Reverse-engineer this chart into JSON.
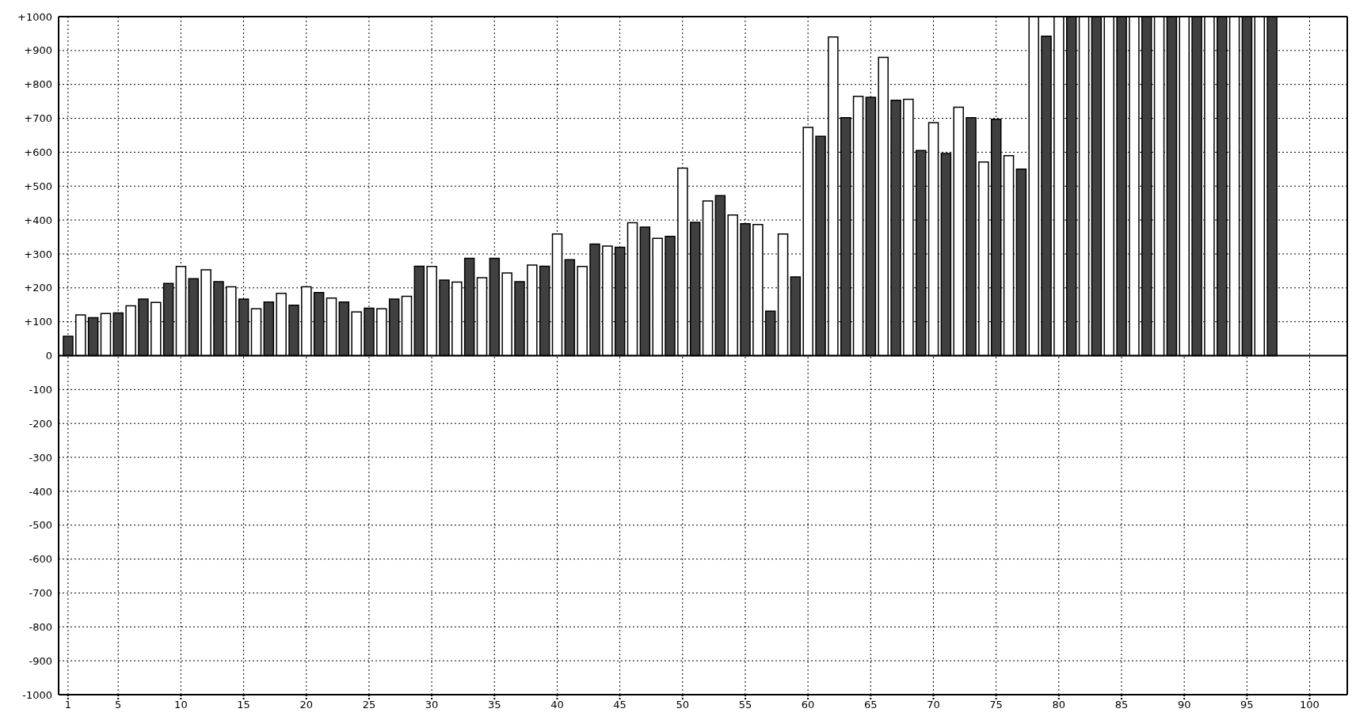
{
  "chart_data": {
    "type": "bar",
    "x": [
      1,
      2,
      3,
      4,
      5,
      6,
      7,
      8,
      9,
      10,
      11,
      12,
      13,
      14,
      15,
      16,
      17,
      18,
      19,
      20,
      21,
      22,
      23,
      24,
      25,
      26,
      27,
      28,
      29,
      30,
      31,
      32,
      33,
      34,
      35,
      36,
      37,
      38,
      39,
      40,
      41,
      42,
      43,
      44,
      45,
      46,
      47,
      48,
      49,
      50,
      51,
      52,
      53,
      54,
      55,
      56,
      57,
      58,
      59,
      60,
      61,
      62,
      63,
      64,
      65,
      66,
      67,
      68,
      69,
      70,
      71,
      72,
      73,
      74,
      75,
      76,
      77,
      78,
      79,
      80,
      81,
      82,
      83,
      84,
      85,
      86,
      87,
      88,
      89,
      90,
      91,
      92,
      93,
      94,
      95,
      96,
      97
    ],
    "values": [
      57,
      120,
      112,
      124,
      126,
      147,
      167,
      157,
      213,
      263,
      227,
      253,
      218,
      203,
      167,
      138,
      158,
      184,
      149,
      203,
      186,
      170,
      158,
      129,
      140,
      138,
      167,
      175,
      264,
      263,
      223,
      217,
      287,
      230,
      287,
      244,
      218,
      267,
      264,
      359,
      283,
      263,
      329,
      323,
      320,
      392,
      379,
      346,
      352,
      553,
      393,
      456,
      472,
      415,
      389,
      387,
      131,
      359,
      232,
      673,
      647,
      940,
      702,
      765,
      762,
      880,
      753,
      756,
      605,
      687,
      596,
      733,
      702,
      571,
      697,
      590,
      550,
      1000,
      942,
      1000,
      1000,
      1000,
      1000,
      1000,
      1000,
      1000,
      1000,
      1000,
      1000,
      1000,
      1000,
      1000,
      1000,
      1000,
      1000,
      1000,
      1000
    ],
    "colors": [
      "#404040",
      "#ffffff",
      "#404040",
      "#ffffff",
      "#404040",
      "#ffffff",
      "#404040",
      "#ffffff",
      "#404040",
      "#ffffff",
      "#404040",
      "#ffffff",
      "#404040",
      "#ffffff",
      "#404040",
      "#ffffff",
      "#404040",
      "#ffffff",
      "#404040",
      "#ffffff",
      "#404040",
      "#ffffff",
      "#404040",
      "#ffffff",
      "#404040",
      "#ffffff",
      "#404040",
      "#ffffff",
      "#404040",
      "#ffffff",
      "#404040",
      "#ffffff",
      "#404040",
      "#ffffff",
      "#404040",
      "#ffffff",
      "#404040",
      "#ffffff",
      "#404040",
      "#ffffff",
      "#404040",
      "#ffffff",
      "#404040",
      "#ffffff",
      "#404040",
      "#ffffff",
      "#404040",
      "#ffffff",
      "#404040",
      "#ffffff",
      "#404040",
      "#ffffff",
      "#404040",
      "#ffffff",
      "#404040",
      "#ffffff",
      "#404040",
      "#ffffff",
      "#404040",
      "#ffffff",
      "#404040",
      "#ffffff",
      "#404040",
      "#ffffff",
      "#404040",
      "#ffffff",
      "#404040",
      "#ffffff",
      "#404040",
      "#ffffff",
      "#404040",
      "#ffffff",
      "#404040",
      "#ffffff",
      "#404040",
      "#ffffff",
      "#404040",
      "#ffffff",
      "#404040",
      "#ffffff",
      "#404040",
      "#ffffff",
      "#404040",
      "#ffffff",
      "#404040",
      "#ffffff",
      "#404040",
      "#ffffff",
      "#404040",
      "#ffffff",
      "#404040",
      "#ffffff",
      "#404040",
      "#ffffff",
      "#404040",
      "#ffffff",
      "#404040"
    ],
    "xlim": [
      0.25,
      103
    ],
    "xticks": [
      1,
      5,
      10,
      15,
      20,
      25,
      30,
      35,
      40,
      45,
      50,
      55,
      60,
      65,
      70,
      75,
      80,
      85,
      90,
      95,
      100
    ],
    "ylim": [
      -1000,
      1000
    ],
    "yticks": [
      -1000,
      -900,
      -800,
      -700,
      -600,
      -500,
      -400,
      -300,
      -200,
      -100,
      0,
      {
        "value": 100,
        "label": "+100"
      },
      {
        "value": 200,
        "label": "+200"
      },
      {
        "value": 300,
        "label": "+300"
      },
      {
        "value": 400,
        "label": "+400"
      },
      {
        "value": 500,
        "label": "+500"
      },
      {
        "value": 600,
        "label": "+600"
      },
      {
        "value": 700,
        "label": "+700"
      },
      {
        "value": 800,
        "label": "+800"
      },
      {
        "value": 900,
        "label": "+900"
      },
      {
        "value": 1000,
        "label": "+1000"
      }
    ],
    "grid": true
  }
}
